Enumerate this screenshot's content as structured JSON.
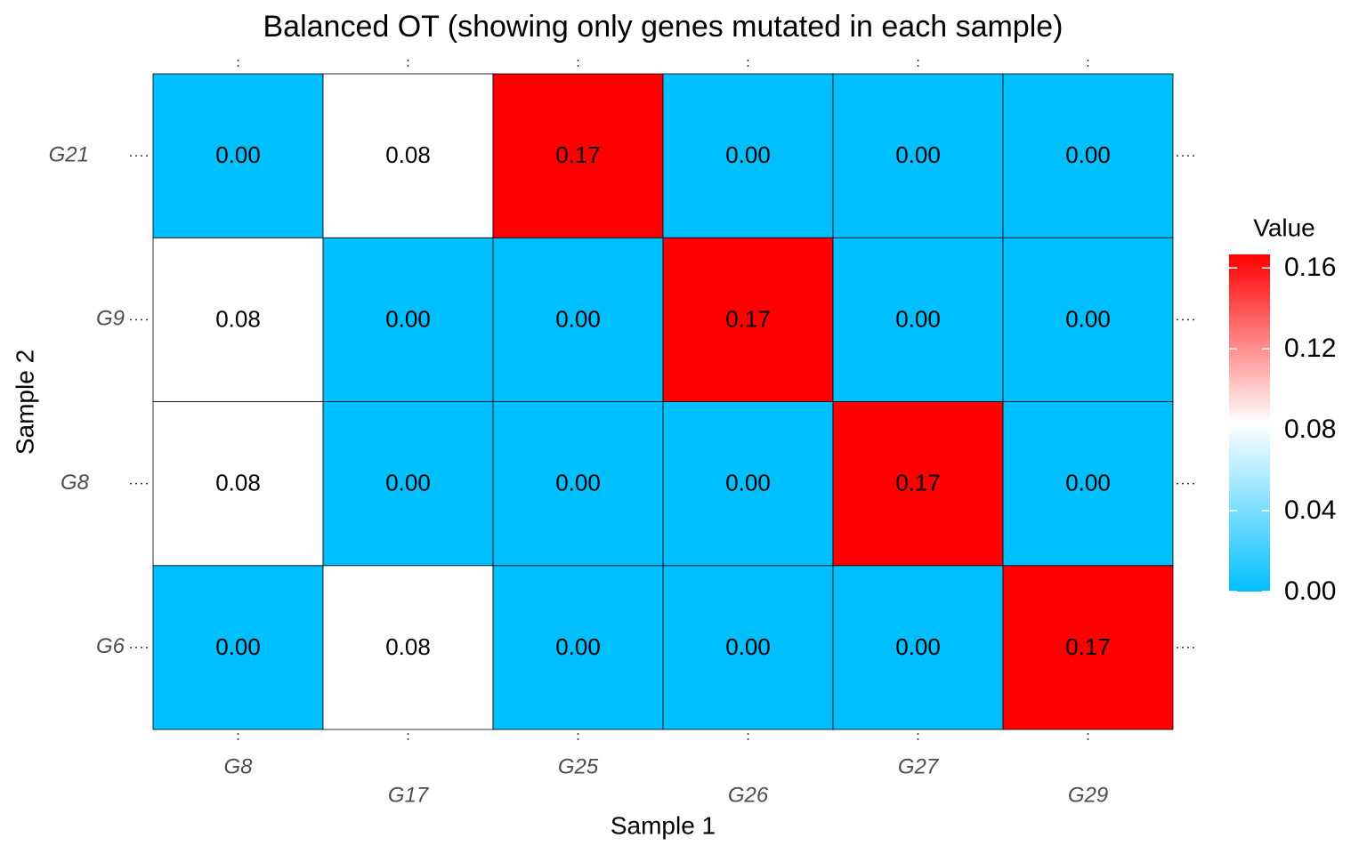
{
  "chart_data": {
    "type": "heatmap",
    "title": "Balanced OT (showing only genes mutated in each sample)",
    "x_label": "Sample 1",
    "y_label": "Sample 2",
    "x_categories": [
      "G8",
      "G17",
      "G25",
      "G26",
      "G27",
      "G29"
    ],
    "y_categories": [
      "G6",
      "G8",
      "G9",
      "G21"
    ],
    "values": [
      [
        0,
        0.0833,
        0,
        0,
        0,
        0.1667
      ],
      [
        0.0833,
        0,
        0,
        0,
        0.1667,
        0
      ],
      [
        0.0833,
        0,
        0,
        0.1667,
        0,
        0
      ],
      [
        0,
        0.0833,
        0.1667,
        0,
        0,
        0
      ]
    ],
    "value_labels": [
      [
        "0.00",
        "0.08",
        "0.00",
        "0.00",
        "0.00",
        "0.17"
      ],
      [
        "0.08",
        "0.00",
        "0.00",
        "0.00",
        "0.17",
        "0.00"
      ],
      [
        "0.08",
        "0.00",
        "0.00",
        "0.17",
        "0.00",
        "0.00"
      ],
      [
        "0.00",
        "0.08",
        "0.17",
        "0.00",
        "0.00",
        "0.00"
      ]
    ],
    "legend_title": "Value",
    "colors": [
      "#00BFFF",
      "#FFFFFF",
      "#FF0000"
    ],
    "clim": [
      0,
      0.1667
    ],
    "cticks": [
      {
        "value": 0,
        "label": "0.00"
      },
      {
        "value": 0.04,
        "label": "0.04"
      },
      {
        "value": 0.08,
        "label": "0.08"
      },
      {
        "value": 0.12,
        "label": "0.12"
      },
      {
        "value": 0.16,
        "label": "0.16"
      }
    ]
  }
}
